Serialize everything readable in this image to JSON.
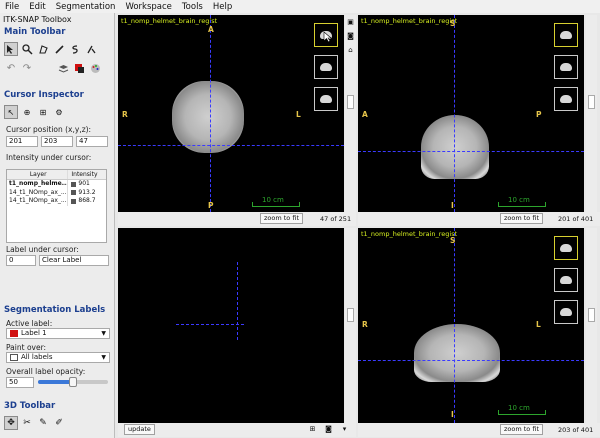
{
  "menu": [
    "File",
    "Edit",
    "Segmentation",
    "Workspace",
    "Tools",
    "Help"
  ],
  "panel": {
    "title": "ITK-SNAP Toolbox",
    "main_toolbar": "Main Toolbar",
    "cursor_inspector": "Cursor Inspector",
    "cursor_position_label": "Cursor position (x,y,z):",
    "cursor_position": [
      "201",
      "203",
      "47"
    ],
    "intensity_label": "Intensity under cursor:",
    "table_headers": [
      "Layer",
      "Intensity"
    ],
    "layers": [
      {
        "name": "t1_nomp_helme...",
        "value": "901"
      },
      {
        "name": "14_t1_NOmp_ax_...",
        "value": "913.2"
      },
      {
        "name": "14_t1_NOmp_ax_...",
        "value": "868.7"
      }
    ],
    "label_under_cursor": "Label under cursor:",
    "label_value": "0",
    "label_name": "Clear Label",
    "segmentation_labels": "Segmentation Labels",
    "active_label_caption": "Active label:",
    "active_label": "Label 1",
    "paint_over_caption": "Paint over:",
    "paint_over": "All labels",
    "opacity_caption": "Overall label opacity:",
    "opacity_value": "50",
    "opacity_fraction": 0.5,
    "toolbar_3d": "3D Toolbar"
  },
  "views": {
    "title": "t1_nomp_helmet_brain_regist",
    "axial": {
      "labels": [
        "A",
        "R",
        "L",
        "P"
      ],
      "scale": "10 cm",
      "zoom": "zoom to fit",
      "slice": "47 of 251"
    },
    "sagittal": {
      "labels": [
        "S",
        "A",
        "P",
        "I"
      ],
      "scale": "10 cm",
      "zoom": "zoom to fit",
      "slice": "201 of 401"
    },
    "coronal": {
      "labels": [
        "S",
        "R",
        "L",
        "I"
      ],
      "scale": "10 cm",
      "zoom": "zoom to fit",
      "slice": "203 of 401"
    },
    "three_d": {
      "update": "update"
    }
  },
  "colors": {
    "title": "#d7f020",
    "orientation": "#e5c44a",
    "crosshair": "#3a3aff",
    "scale": "#2da52d",
    "active_label": "#d01010"
  }
}
